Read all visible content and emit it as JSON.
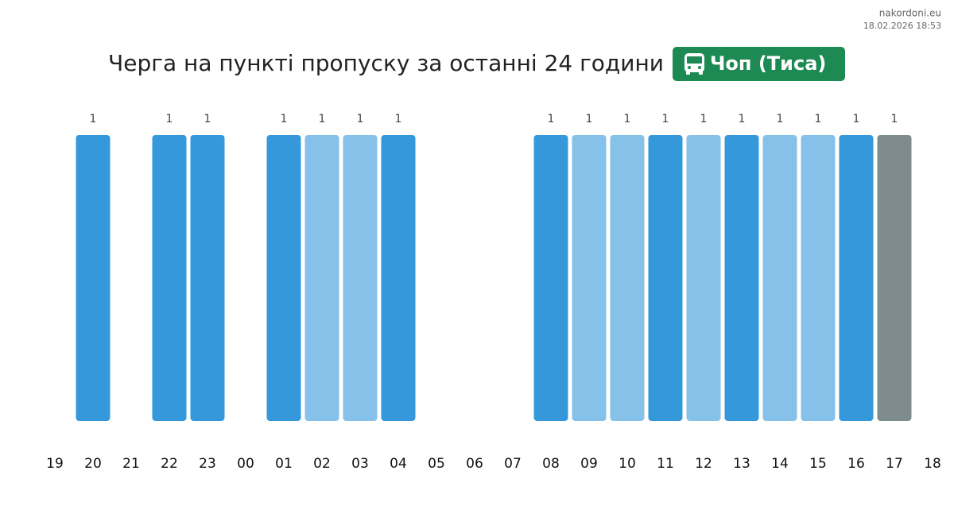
{
  "chart_data": {
    "type": "bar",
    "title": "Черга на пункті пропуску за останні 24 години",
    "badge": "Чоп (Тиса)",
    "site": "nakordoni.eu",
    "timestamp": "18.02.2026 18:53",
    "categories": [
      "19",
      "20",
      "21",
      "22",
      "23",
      "00",
      "01",
      "02",
      "03",
      "04",
      "05",
      "06",
      "07",
      "08",
      "09",
      "10",
      "11",
      "12",
      "13",
      "14",
      "15",
      "16",
      "17",
      "18"
    ],
    "values": [
      null,
      1,
      null,
      1,
      1,
      null,
      1,
      1,
      1,
      1,
      null,
      null,
      null,
      1,
      1,
      1,
      1,
      1,
      1,
      1,
      1,
      1,
      1,
      null
    ],
    "colors": [
      null,
      "#3498db",
      null,
      "#3498db",
      "#3498db",
      null,
      "#3498db",
      "#85c1e9",
      "#85c1e9",
      "#3498db",
      null,
      null,
      null,
      "#3498db",
      "#85c1e9",
      "#85c1e9",
      "#3498db",
      "#85c1e9",
      "#3498db",
      "#85c1e9",
      "#85c1e9",
      "#3498db",
      "#7f8c8d",
      null
    ]
  }
}
